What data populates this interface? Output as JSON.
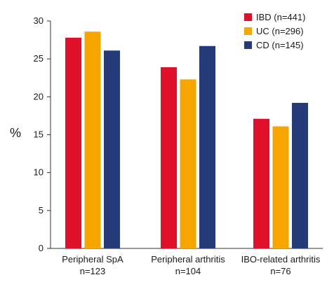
{
  "chart_data": {
    "type": "bar",
    "ylabel": "%",
    "ylim": [
      0,
      30
    ],
    "yticks": [
      "0",
      "5",
      "10",
      "15",
      "20",
      "25",
      "30"
    ],
    "categories": [
      [
        "Peripheral SpA",
        "n=123"
      ],
      [
        "Peripheral arthritis",
        "n=104"
      ],
      [
        "IBO-related arthritis",
        "n=76"
      ]
    ],
    "series": [
      {
        "name": "IBD (n=441)",
        "color": "#e0102a",
        "values": [
          27.8,
          23.9,
          17.1
        ]
      },
      {
        "name": "UC (n=296)",
        "color": "#f7a600",
        "values": [
          28.6,
          22.3,
          16.1
        ]
      },
      {
        "name": "CD (n=145)",
        "color": "#253a78",
        "values": [
          26.1,
          26.7,
          19.2
        ]
      }
    ],
    "legend_position": "top-right",
    "grid": false
  }
}
